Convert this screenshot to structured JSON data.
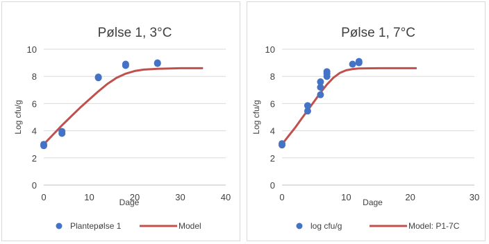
{
  "chart_data": [
    {
      "type": "scatter",
      "title": "Pølse 1, 3°C",
      "xlabel": "Dage",
      "ylabel": "Log cfu/g",
      "xlim": [
        0,
        40
      ],
      "ylim": [
        0,
        10
      ],
      "xticks": [
        "0",
        "10",
        "20",
        "30",
        "40"
      ],
      "yticks": [
        "0",
        "2",
        "4",
        "6",
        "8",
        "10"
      ],
      "grid": "horizontal",
      "legend_position": "bottom",
      "series": [
        {
          "name": "Plantepølse 1",
          "kind": "scatter",
          "color": "#4472c4",
          "points": [
            [
              0,
              3.0
            ],
            [
              0,
              2.9
            ],
            [
              4,
              3.95
            ],
            [
              4,
              3.8
            ],
            [
              12,
              7.95
            ],
            [
              12,
              7.9
            ],
            [
              18,
              8.9
            ],
            [
              18,
              8.8
            ],
            [
              25,
              9.0
            ],
            [
              25,
              8.95
            ]
          ]
        },
        {
          "name": "Model",
          "kind": "line",
          "color": "#c0504d",
          "points": [
            [
              0,
              3.0
            ],
            [
              2,
              3.7
            ],
            [
              4,
              4.4
            ],
            [
              6,
              5.05
            ],
            [
              8,
              5.7
            ],
            [
              10,
              6.3
            ],
            [
              12,
              6.9
            ],
            [
              14,
              7.45
            ],
            [
              16,
              7.9
            ],
            [
              18,
              8.2
            ],
            [
              20,
              8.4
            ],
            [
              22,
              8.5
            ],
            [
              25,
              8.56
            ],
            [
              30,
              8.6
            ],
            [
              35,
              8.6
            ]
          ]
        }
      ]
    },
    {
      "type": "scatter",
      "title": "Pølse 1, 7°C",
      "xlabel": "Dage",
      "ylabel": "Log cfu/g",
      "xlim": [
        0,
        30
      ],
      "ylim": [
        0,
        10
      ],
      "xticks": [
        "0",
        "10",
        "20",
        "30"
      ],
      "yticks": [
        "0",
        "2",
        "4",
        "6",
        "8",
        "10"
      ],
      "grid": "horizontal",
      "legend_position": "bottom",
      "series": [
        {
          "name": "log cfu/g",
          "kind": "scatter",
          "color": "#4472c4",
          "points": [
            [
              0,
              3.05
            ],
            [
              0,
              2.95
            ],
            [
              4,
              5.85
            ],
            [
              4,
              5.45
            ],
            [
              6,
              7.6
            ],
            [
              6,
              7.2
            ],
            [
              6,
              6.65
            ],
            [
              7,
              8.35
            ],
            [
              7,
              8.2
            ],
            [
              7,
              8.0
            ],
            [
              11,
              8.9
            ],
            [
              12,
              9.1
            ],
            [
              12,
              9.0
            ]
          ]
        },
        {
          "name": "Model: P1-7C",
          "kind": "line",
          "color": "#c0504d",
          "points": [
            [
              0,
              3.0
            ],
            [
              1,
              3.6
            ],
            [
              2,
              4.2
            ],
            [
              3,
              4.85
            ],
            [
              4,
              5.5
            ],
            [
              5,
              6.15
            ],
            [
              6,
              6.8
            ],
            [
              7,
              7.4
            ],
            [
              8,
              7.9
            ],
            [
              9,
              8.25
            ],
            [
              10,
              8.45
            ],
            [
              11,
              8.54
            ],
            [
              12,
              8.58
            ],
            [
              15,
              8.6
            ],
            [
              21,
              8.6
            ]
          ]
        }
      ]
    }
  ]
}
